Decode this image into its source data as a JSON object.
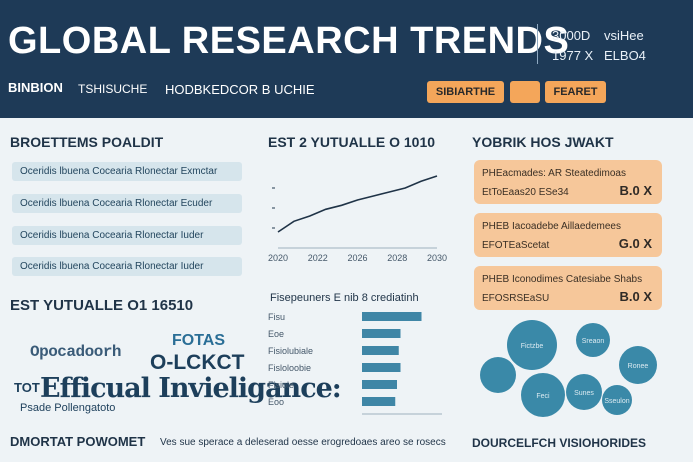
{
  "header": {
    "title": "GLOBAL RESEARCH TRENDS",
    "stat1a": "3000D",
    "stat1b": "vsiHee",
    "stat2a": "1977 X",
    "stat2b": "ELBO4",
    "sub1": "BINBION",
    "sub2": "TSHISUCHE",
    "sub3": "HODBKEDCOR B UCHIE",
    "btn1": "SIBIARTHE",
    "btn2": "",
    "btn3": "FEARET"
  },
  "left": {
    "title": "BROETTEMS POALDIT",
    "items": [
      "Oceridis lbuena Cocearia Rlonectar Exmctar",
      "Oceridis lbuena Cocearia Rlonectar Ecuder",
      "Oceridis lbuena Cocearia Rlonectar Iuder",
      "Oceridis lbuena Cocearia Rlonectar Iuder"
    ]
  },
  "wordcloud": {
    "title": "EST YUTUALLE O1 16510",
    "w1": "FOTAS",
    "w2": "O-LCKCT",
    "w3": "TOT",
    "w4": "Efficual Invieligance:",
    "w5": "Psade Pollengatoto",
    "w6": "Opocadoorh"
  },
  "mid": {
    "title": "EST 2 YUTUALLE O 1010",
    "xticks": [
      "2020",
      "2022",
      "2026",
      "2028",
      "2030"
    ],
    "chart2_title": "Fisepeuners E nib 8 crediatinh",
    "hbar_labels": [
      "Fisu",
      "Eoe",
      "Fisiolubiale",
      "Fisloloobie",
      "Fisiole",
      "Eoo"
    ]
  },
  "chart_data": [
    {
      "type": "line",
      "x": [
        2020,
        2021,
        2022,
        2023,
        2024,
        2025,
        2026,
        2027,
        2028,
        2029,
        2030
      ],
      "series": [
        {
          "values": [
            1.2,
            2.0,
            2.4,
            2.9,
            3.2,
            3.6,
            3.9,
            4.2,
            4.5,
            5.0,
            5.4
          ]
        }
      ],
      "xlabel": "",
      "ylabel": "",
      "ylim": [
        0,
        6
      ],
      "grid": false
    },
    {
      "type": "bar",
      "orientation": "horizontal",
      "categories": [
        "Fisu",
        "Eoe",
        "Fisiolubiale",
        "Fisloloobie",
        "Fisiole",
        "Eoo"
      ],
      "values": [
        3.4,
        2.2,
        2.1,
        2.2,
        2.0,
        1.9
      ],
      "xlim": [
        0,
        4
      ]
    }
  ],
  "right": {
    "title": "YOBRIK HOS JWAKT",
    "cards": [
      {
        "line1": "PHEacmades: AR Steatedimoas",
        "line2": "EtToEaas20 ESe34",
        "value": "B.0 X"
      },
      {
        "line1": "PHEB Iacoadebe Aillaedemees",
        "line2": "EFOTEaScetat",
        "value": "G.0 X"
      },
      {
        "line1": "PHEB Iconodimes Catesiabe Shabs",
        "line2": "EFOSRSEaSU",
        "value": "B.0 X"
      }
    ],
    "bubbles": [
      "Fictzbe",
      "Sreaon",
      "Feci",
      "Sunes",
      "Ronee",
      "Sseulon"
    ]
  },
  "footer": {
    "left_title": "DMORTAT POWOMET",
    "left_text": "Ves sue sperace a deleserad oesse erogredoaes areo se rosecs",
    "right_title": "DOURCELFCH VISIOHORIDES"
  },
  "colors": {
    "header_bg": "#1e3a57",
    "accent_orange": "#f4a65a",
    "card_bg": "#f6c79a",
    "bubble": "#3a89a8",
    "bar": "#3f86a6"
  }
}
